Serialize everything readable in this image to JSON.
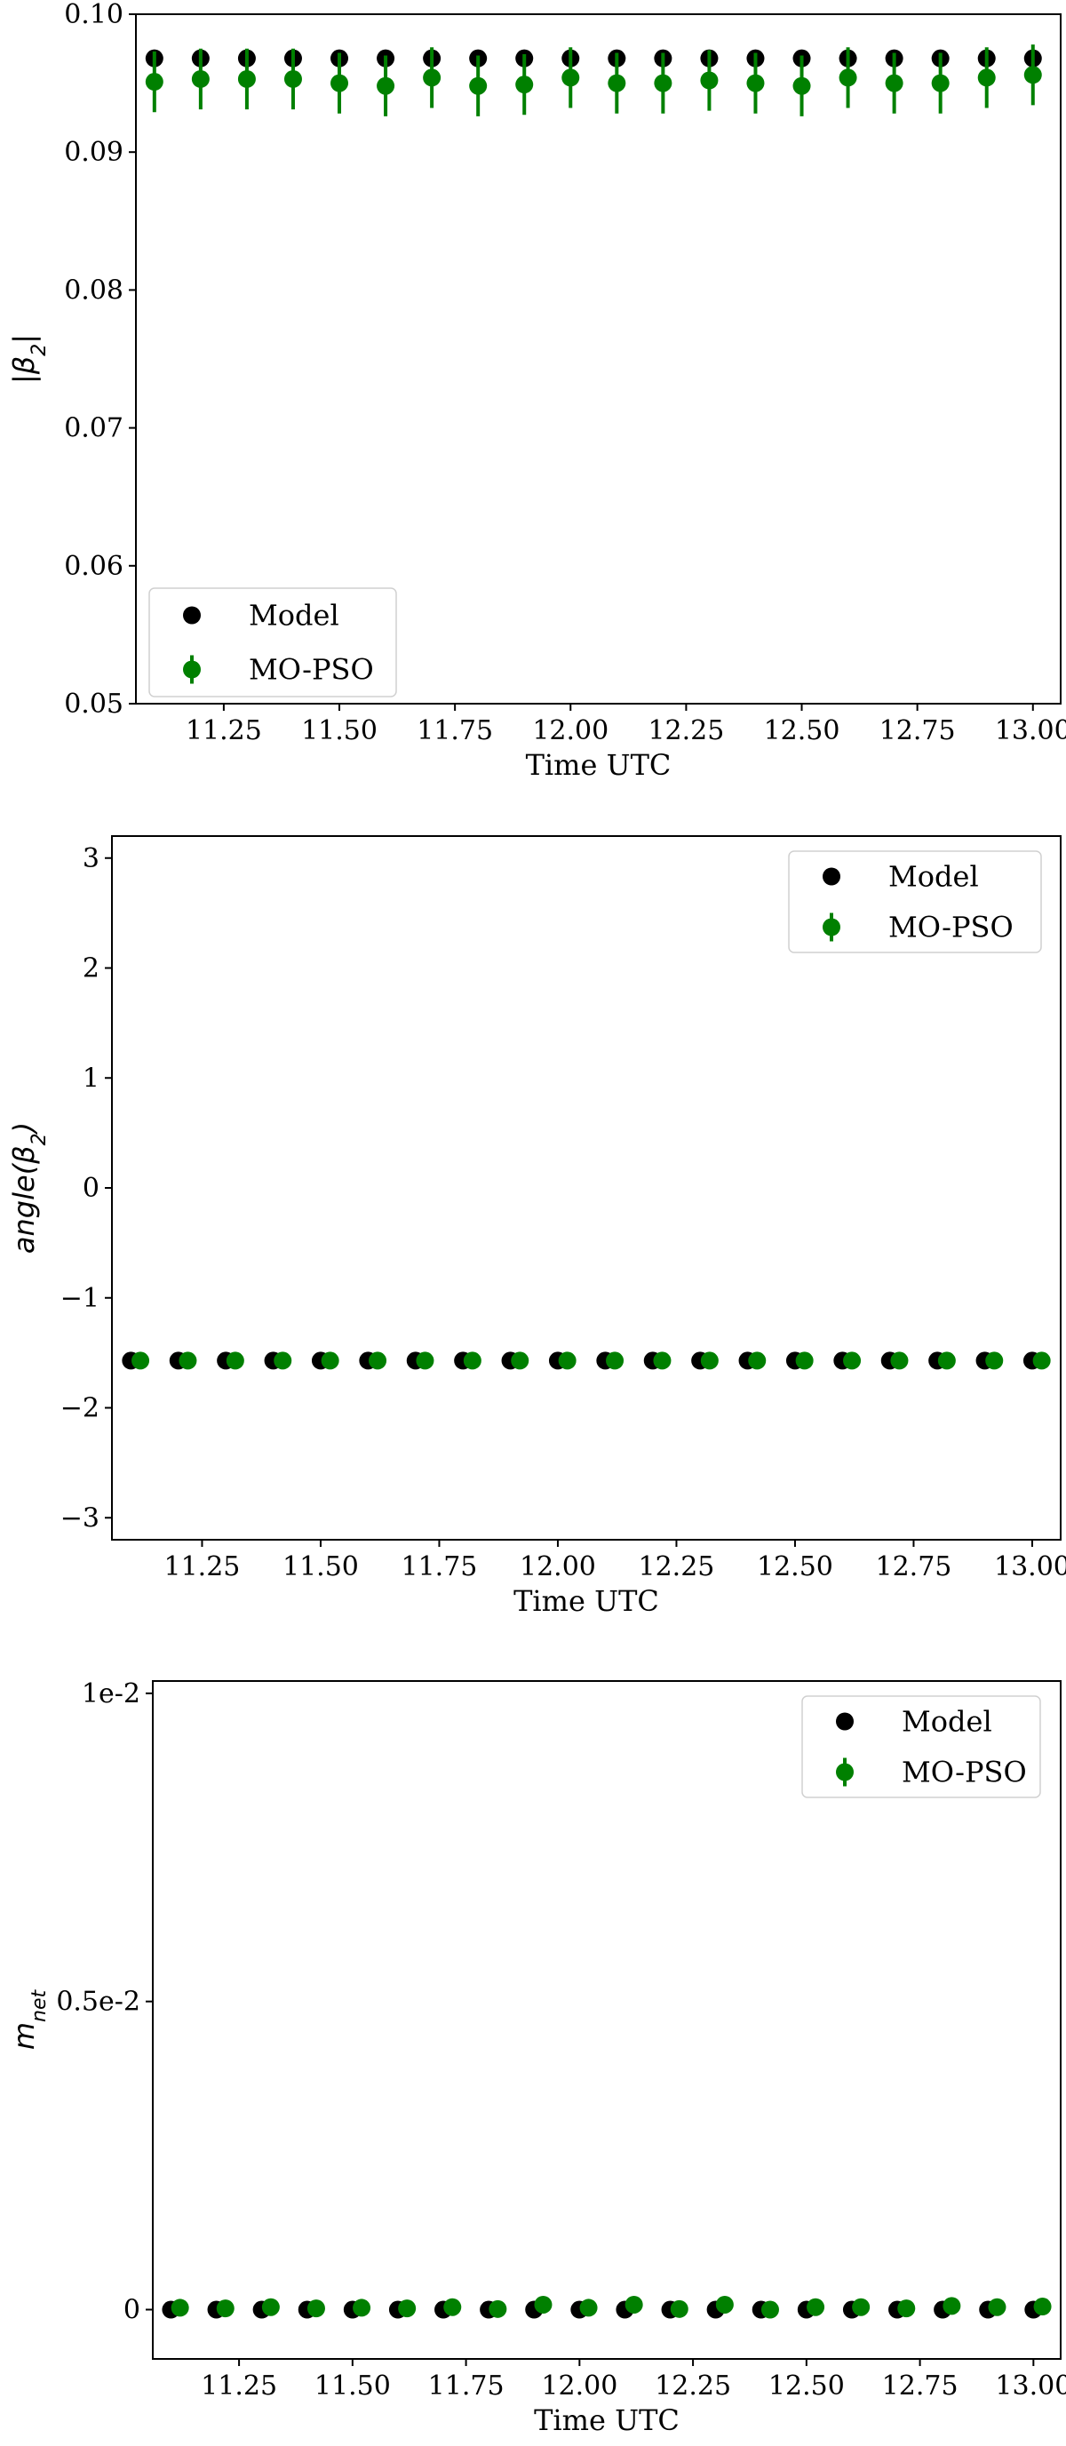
{
  "chart_data": [
    {
      "type": "scatter",
      "panel": "top",
      "xlabel": "Time UTC",
      "ylabel_main": "|β",
      "ylabel_sub": "2",
      "ylabel_end": "|",
      "xlim": [
        11.06,
        13.06
      ],
      "ylim": [
        0.05,
        0.1
      ],
      "xticks": [
        11.25,
        11.5,
        11.75,
        12.0,
        12.25,
        12.5,
        12.75,
        13.0
      ],
      "xtick_labels": [
        "11.25",
        "11.50",
        "11.75",
        "12.00",
        "12.25",
        "12.50",
        "12.75",
        "13.00"
      ],
      "yticks": [
        0.05,
        0.06,
        0.07,
        0.08,
        0.09,
        0.1
      ],
      "ytick_labels": [
        "0.05",
        "0.06",
        "0.07",
        "0.08",
        "0.09",
        "0.10"
      ],
      "legend": {
        "position": "lower-left",
        "entries": [
          "Model",
          "MO-PSO"
        ]
      },
      "series": [
        {
          "name": "Model",
          "color": "#000000",
          "x": [
            11.1,
            11.2,
            11.3,
            11.4,
            11.5,
            11.6,
            11.7,
            11.8,
            11.9,
            12.0,
            12.1,
            12.2,
            12.3,
            12.4,
            12.5,
            12.6,
            12.7,
            12.8,
            12.9,
            13.0
          ],
          "y": [
            0.0968,
            0.0968,
            0.0968,
            0.0968,
            0.0968,
            0.0968,
            0.0968,
            0.0968,
            0.0968,
            0.0968,
            0.0968,
            0.0968,
            0.0968,
            0.0968,
            0.0968,
            0.0968,
            0.0968,
            0.0968,
            0.0968,
            0.0968
          ]
        },
        {
          "name": "MO-PSO",
          "color": "#008000",
          "x": [
            11.1,
            11.2,
            11.3,
            11.4,
            11.5,
            11.6,
            11.7,
            11.8,
            11.9,
            12.0,
            12.1,
            12.2,
            12.3,
            12.4,
            12.5,
            12.6,
            12.7,
            12.8,
            12.9,
            13.0
          ],
          "y": [
            0.0951,
            0.0953,
            0.0953,
            0.0953,
            0.095,
            0.0948,
            0.0954,
            0.0948,
            0.0949,
            0.0954,
            0.095,
            0.095,
            0.0952,
            0.095,
            0.0948,
            0.0954,
            0.095,
            0.095,
            0.0954,
            0.0956
          ],
          "err": [
            0.0022,
            0.0022,
            0.0022,
            0.0022,
            0.0022,
            0.0022,
            0.0022,
            0.0022,
            0.0022,
            0.0022,
            0.0022,
            0.0022,
            0.0022,
            0.0022,
            0.0022,
            0.0022,
            0.0022,
            0.0022,
            0.0022,
            0.0022
          ]
        }
      ]
    },
    {
      "type": "scatter",
      "panel": "middle",
      "xlabel": "Time UTC",
      "ylabel_main": "angle(β",
      "ylabel_sub": "2",
      "ylabel_end": ")",
      "xlim": [
        11.06,
        13.06
      ],
      "ylim": [
        -3.2,
        3.2
      ],
      "xticks": [
        11.25,
        11.5,
        11.75,
        12.0,
        12.25,
        12.5,
        12.75,
        13.0
      ],
      "xtick_labels": [
        "11.25",
        "11.50",
        "11.75",
        "12.00",
        "12.25",
        "12.50",
        "12.75",
        "13.00"
      ],
      "yticks": [
        -3,
        -2,
        -1,
        0,
        1,
        2,
        3
      ],
      "ytick_labels": [
        "−3",
        "−2",
        "−1",
        "0",
        "1",
        "2",
        "3"
      ],
      "legend": {
        "position": "top-right",
        "entries": [
          "Model",
          "MO-PSO"
        ]
      },
      "series": [
        {
          "name": "Model",
          "color": "#000000",
          "x": [
            11.1,
            11.2,
            11.3,
            11.4,
            11.5,
            11.6,
            11.7,
            11.8,
            11.9,
            12.0,
            12.1,
            12.2,
            12.3,
            12.4,
            12.5,
            12.6,
            12.7,
            12.8,
            12.9,
            13.0
          ],
          "y": [
            -1.5708,
            -1.5708,
            -1.5708,
            -1.5708,
            -1.5708,
            -1.5708,
            -1.5708,
            -1.5708,
            -1.5708,
            -1.5708,
            -1.5708,
            -1.5708,
            -1.5708,
            -1.5708,
            -1.5708,
            -1.5708,
            -1.5708,
            -1.5708,
            -1.5708,
            -1.5708
          ]
        },
        {
          "name": "MO-PSO",
          "color": "#008000",
          "x": [
            11.12,
            11.22,
            11.32,
            11.42,
            11.52,
            11.62,
            11.72,
            11.82,
            11.92,
            12.02,
            12.12,
            12.22,
            12.32,
            12.42,
            12.52,
            12.62,
            12.72,
            12.82,
            12.92,
            13.02
          ],
          "y": [
            -1.5708,
            -1.5708,
            -1.5708,
            -1.5708,
            -1.5708,
            -1.5708,
            -1.5708,
            -1.5708,
            -1.5708,
            -1.5708,
            -1.5708,
            -1.5708,
            -1.5708,
            -1.5708,
            -1.5708,
            -1.5708,
            -1.5708,
            -1.5708,
            -1.5708,
            -1.5708
          ],
          "err": [
            0.02,
            0.02,
            0.02,
            0.02,
            0.02,
            0.02,
            0.02,
            0.02,
            0.02,
            0.02,
            0.02,
            0.02,
            0.02,
            0.02,
            0.02,
            0.02,
            0.02,
            0.02,
            0.02,
            0.02
          ]
        }
      ]
    },
    {
      "type": "scatter",
      "panel": "bottom",
      "xlabel": "Time UTC",
      "ylabel_main": "m",
      "ylabel_sub": "net",
      "ylabel_end": "",
      "xlim": [
        11.06,
        13.06
      ],
      "ylim": [
        -0.0008,
        0.0102
      ],
      "xticks": [
        11.25,
        11.5,
        11.75,
        12.0,
        12.25,
        12.5,
        12.75,
        13.0
      ],
      "xtick_labels": [
        "11.25",
        "11.50",
        "11.75",
        "12.00",
        "12.25",
        "12.50",
        "12.75",
        "13.00"
      ],
      "yticks": [
        0,
        0.005,
        0.01
      ],
      "ytick_labels": [
        "0",
        "0.5e-2",
        "1e-2"
      ],
      "legend": {
        "position": "top-right",
        "entries": [
          "Model",
          "MO-PSO"
        ]
      },
      "series": [
        {
          "name": "Model",
          "color": "#000000",
          "x": [
            11.1,
            11.2,
            11.3,
            11.4,
            11.5,
            11.6,
            11.7,
            11.8,
            11.9,
            12.0,
            12.1,
            12.2,
            12.3,
            12.4,
            12.5,
            12.6,
            12.7,
            12.8,
            12.9,
            13.0
          ],
          "y": [
            0,
            0,
            0,
            0,
            0,
            0,
            0,
            0,
            0,
            0,
            0,
            0,
            0,
            0,
            0,
            0,
            0,
            0,
            0,
            0
          ]
        },
        {
          "name": "MO-PSO",
          "color": "#008000",
          "x": [
            11.12,
            11.22,
            11.32,
            11.42,
            11.52,
            11.62,
            11.72,
            11.82,
            11.92,
            12.02,
            12.12,
            12.22,
            12.32,
            12.42,
            12.52,
            12.62,
            12.72,
            12.82,
            12.92,
            13.02
          ],
          "y": [
            3e-05,
            2e-05,
            4e-05,
            2e-05,
            3e-05,
            2e-05,
            4e-05,
            1e-05,
            8e-05,
            3e-05,
            8e-05,
            1e-05,
            8e-05,
            0.0,
            4e-05,
            4e-05,
            2e-05,
            6e-05,
            4e-05,
            5e-05
          ],
          "err": [
            4e-05,
            4e-05,
            4e-05,
            4e-05,
            4e-05,
            4e-05,
            4e-05,
            4e-05,
            4e-05,
            4e-05,
            4e-05,
            4e-05,
            4e-05,
            4e-05,
            4e-05,
            4e-05,
            4e-05,
            4e-05,
            4e-05,
            4e-05
          ]
        }
      ]
    }
  ]
}
